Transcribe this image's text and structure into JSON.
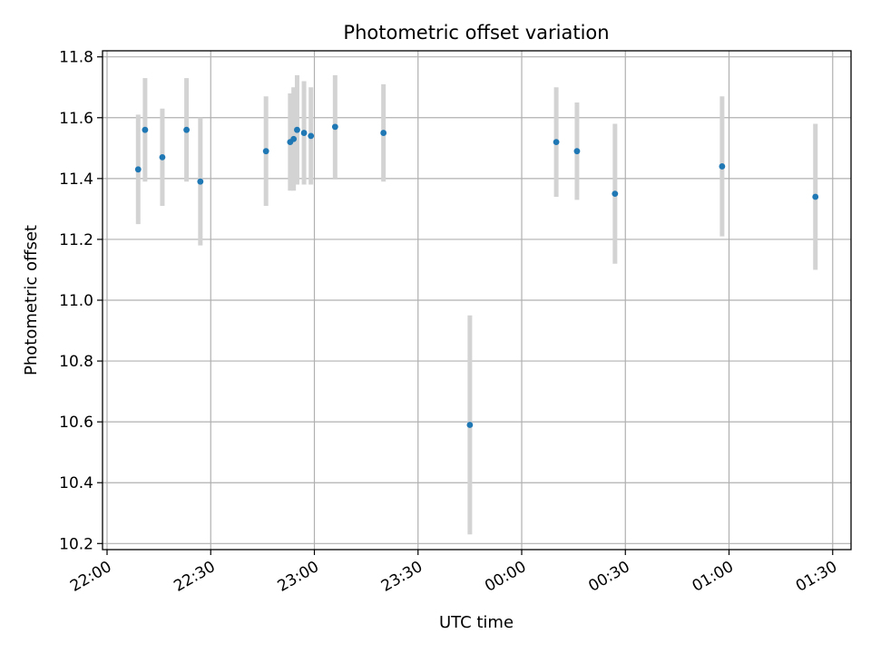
{
  "chart_data": {
    "type": "scatter",
    "title": "Photometric offset variation",
    "xlabel": "UTC time",
    "ylabel": "Photometric offset",
    "x_ticks": [
      "22:00",
      "22:30",
      "23:00",
      "23:30",
      "00:00",
      "00:30",
      "01:00",
      "01:30"
    ],
    "y_ticks": [
      "10.2",
      "10.4",
      "10.6",
      "10.8",
      "11.0",
      "11.2",
      "11.4",
      "11.6",
      "11.8"
    ],
    "xlim": [
      "22:00",
      "01:34"
    ],
    "ylim": [
      10.18,
      11.82
    ],
    "grid": true,
    "colors": {
      "points": "#1f77b4",
      "errorbars": "#d3d3d3",
      "grid": "#b0b0b0"
    },
    "points": [
      {
        "x": "22:09",
        "y": 11.43,
        "err": 0.18
      },
      {
        "x": "22:11",
        "y": 11.56,
        "err": 0.17
      },
      {
        "x": "22:16",
        "y": 11.47,
        "err": 0.16
      },
      {
        "x": "22:23",
        "y": 11.56,
        "err": 0.17
      },
      {
        "x": "22:27",
        "y": 11.39,
        "err": 0.21
      },
      {
        "x": "22:46",
        "y": 11.49,
        "err": 0.18
      },
      {
        "x": "22:53",
        "y": 11.52,
        "err": 0.16
      },
      {
        "x": "22:54",
        "y": 11.53,
        "err": 0.17
      },
      {
        "x": "22:55",
        "y": 11.56,
        "err": 0.18
      },
      {
        "x": "22:57",
        "y": 11.55,
        "err": 0.17
      },
      {
        "x": "22:59",
        "y": 11.54,
        "err": 0.16
      },
      {
        "x": "23:06",
        "y": 11.57,
        "err": 0.17
      },
      {
        "x": "23:20",
        "y": 11.55,
        "err": 0.16
      },
      {
        "x": "23:45",
        "y": 10.59,
        "err": 0.36
      },
      {
        "x": "00:10",
        "y": 11.52,
        "err": 0.18
      },
      {
        "x": "00:16",
        "y": 11.49,
        "err": 0.16
      },
      {
        "x": "00:27",
        "y": 11.35,
        "err": 0.23
      },
      {
        "x": "00:58",
        "y": 11.44,
        "err": 0.23
      },
      {
        "x": "01:25",
        "y": 11.34,
        "err": 0.24
      }
    ]
  }
}
